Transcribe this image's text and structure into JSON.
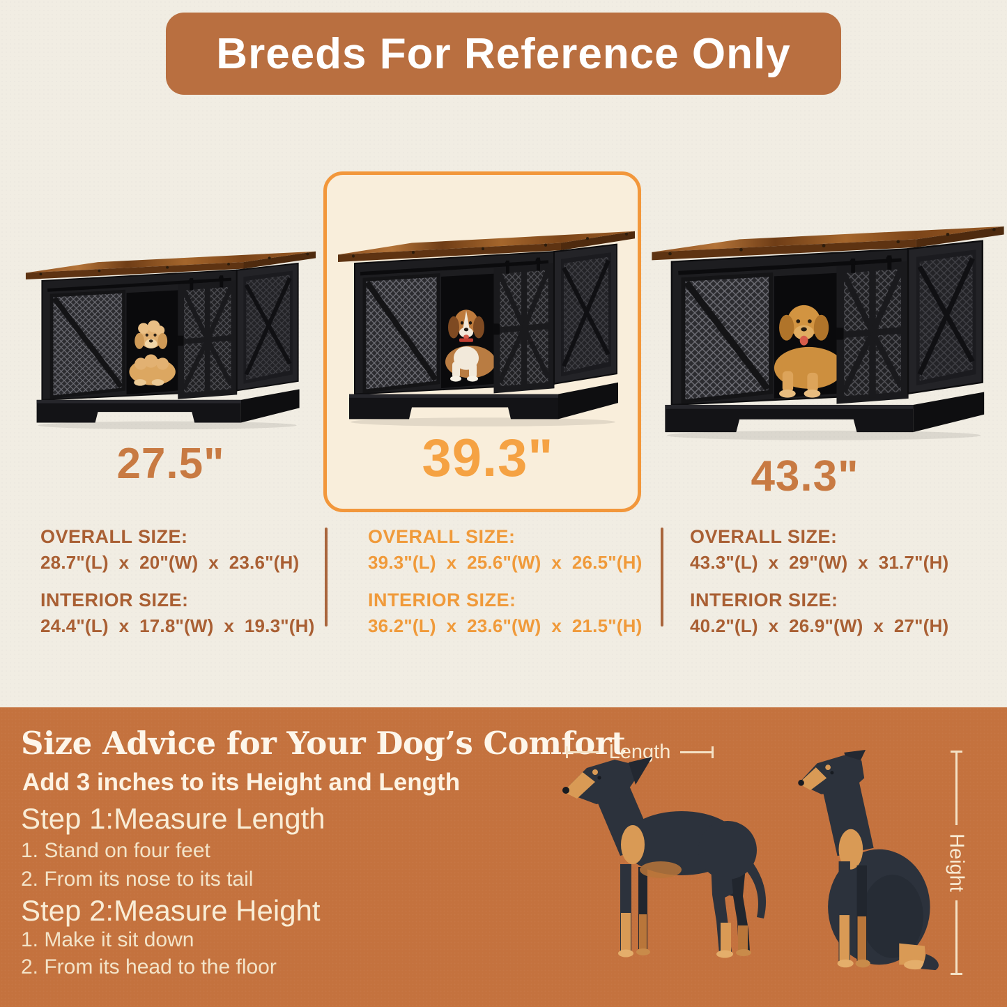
{
  "banner": {
    "title": "Breeds For Reference Only"
  },
  "products": [
    {
      "size": "27.5\"",
      "overall_label": "OVERALL SIZE:",
      "overall_dims": "28.7\"(L)  x  20\"(W)  x  23.6\"(H)",
      "interior_label": "INTERIOR SIZE:",
      "interior_dims": "24.4\"(L)  x  17.8\"(W)  x  19.3\"(H)",
      "dog_breed_icon": "poodle-puppy",
      "highlighted": false
    },
    {
      "size": "39.3\"",
      "overall_label": "OVERALL SIZE:",
      "overall_dims": "39.3\"(L)  x  25.6\"(W)  x  26.5\"(H)",
      "interior_label": "INTERIOR SIZE:",
      "interior_dims": "36.2\"(L)  x  23.6\"(W)  x  21.5\"(H)",
      "dog_breed_icon": "beagle",
      "highlighted": true
    },
    {
      "size": "43.3\"",
      "overall_label": "OVERALL SIZE:",
      "overall_dims": "43.3\"(L)  x  29\"(W)  x  31.7\"(H)",
      "interior_label": "INTERIOR SIZE:",
      "interior_dims": "40.2\"(L)  x  26.9\"(W)  x  27\"(H)",
      "dog_breed_icon": "golden-retriever",
      "highlighted": false
    }
  ],
  "advice": {
    "title": "Size Advice for Your Dog’s Comfort",
    "subtitle": "Add 3 inches to its Height and Length",
    "step1": {
      "heading": "Step 1:Measure Length",
      "item1": "1. Stand on four feet",
      "item2": "2. From its nose to its tail"
    },
    "step2": {
      "heading": "Step 2:Measure Height",
      "item1": "1. Make it sit down",
      "item2": "2. From its head to the floor"
    },
    "length_label": "Length",
    "height_label": "Height"
  },
  "colors": {
    "wall_background": "#f1ede3",
    "banner_background": "#b96f40",
    "bottom_background": "#c4723e",
    "highlight_border": "#f2973b",
    "highlight_fill": "#f9eedb",
    "accent_text_dark": "#a95f33",
    "accent_text_bright": "#f09a3a",
    "size_number_dark": "#c87a42",
    "size_number_bright": "#f5a243",
    "measure_line": "#f4e2c6"
  }
}
